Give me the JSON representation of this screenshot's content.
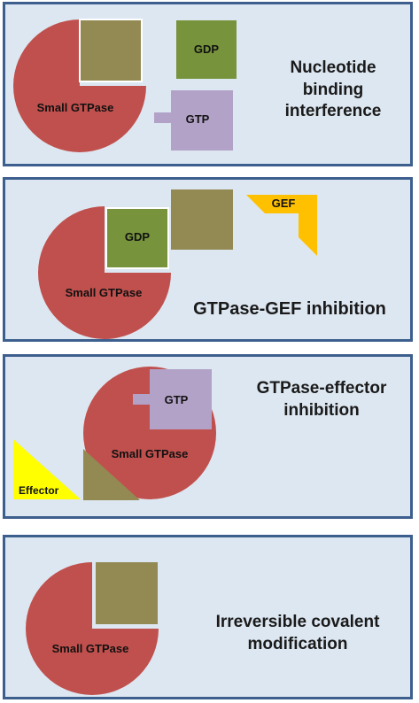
{
  "colors": {
    "panel_bg": "#dde7f1",
    "panel_border": "#3d5f8e",
    "gtpase": "#c0504d",
    "inhibitor": "#938953",
    "gdp": "#77933c",
    "gtp": "#b3a2c7",
    "gef": "#ffc000",
    "effector": "#ffff00"
  },
  "panels": [
    {
      "caption": "Nucleotide binding interference",
      "gtpase_label": "Small GTPase",
      "gdp_label": "GDP",
      "gtp_label": "GTP"
    },
    {
      "caption": "GTPase-GEF inhibition",
      "gtpase_label": "Small GTPase",
      "gdp_label": "GDP",
      "gef_label": "GEF"
    },
    {
      "caption": "GTPase-effector inhibition",
      "gtpase_label": "Small GTPase",
      "gtp_label": "GTP",
      "effector_label": "Effector"
    },
    {
      "caption": "Irreversible covalent modification",
      "gtpase_label": "Small GTPase"
    }
  ]
}
